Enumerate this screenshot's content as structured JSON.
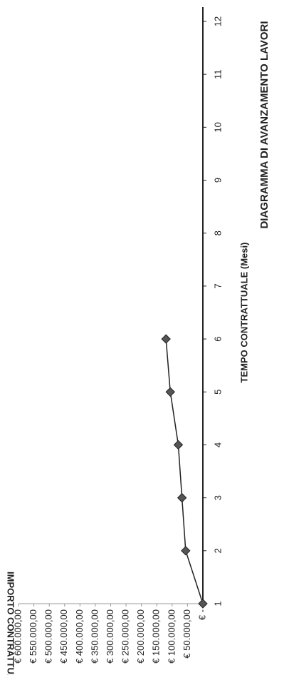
{
  "chart_data": {
    "type": "line",
    "title": "DIAGRAMMA DI AVANZAMENTO LAVORI",
    "x_label": "TEMPO CONTRATTUALE (Mesi)",
    "y_label": "IMPORTO CONTRATTUALE",
    "x": [
      1,
      2,
      3,
      4,
      5,
      6
    ],
    "series": [
      {
        "color": "#555555",
        "values": [
          0,
          56000,
          68000,
          80000,
          106000,
          120000
        ]
      }
    ],
    "xlim": [
      1,
      12
    ],
    "xticks": [
      1,
      2,
      3,
      4,
      5,
      6,
      7,
      8,
      9,
      10,
      11,
      12
    ],
    "ylim": [
      0,
      600000
    ],
    "yticks": [
      {
        "value": 0,
        "label": "€ -"
      },
      {
        "value": 50000,
        "label": "€ 50.000,00"
      },
      {
        "value": 100000,
        "label": "€ 100.000,00"
      },
      {
        "value": 150000,
        "label": "€ 150.000,00"
      },
      {
        "value": 200000,
        "label": "€ 200.000,00"
      },
      {
        "value": 250000,
        "label": "€ 250.000,00"
      },
      {
        "value": 300000,
        "label": "€ 300.000,00"
      },
      {
        "value": 350000,
        "label": "€ 350.000,00"
      },
      {
        "value": 400000,
        "label": "€ 400.000,00"
      },
      {
        "value": 450000,
        "label": "€ 450.000,00"
      },
      {
        "value": 500000,
        "label": "€ 500.000,00"
      },
      {
        "value": 550000,
        "label": "€ 550.000,00"
      },
      {
        "value": 600000,
        "label": "€ 600.000,00"
      }
    ]
  }
}
